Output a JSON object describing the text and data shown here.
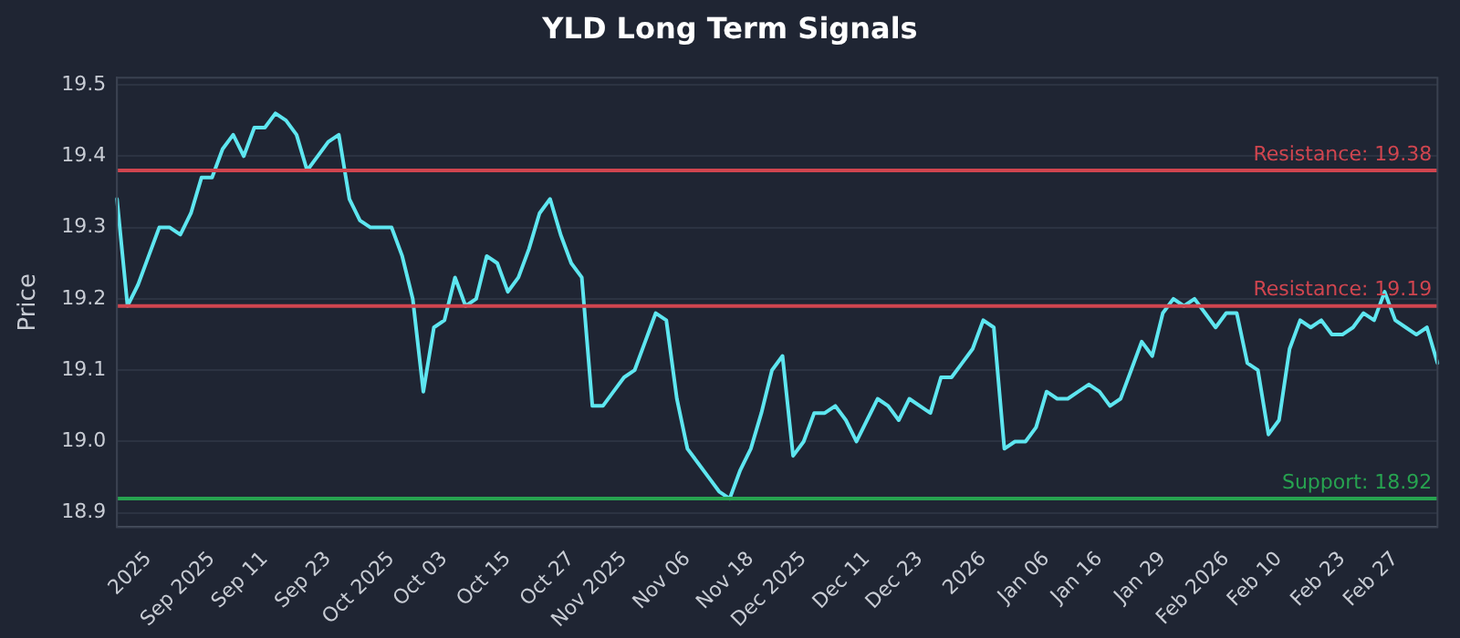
{
  "chart_data": {
    "type": "line",
    "title": "YLD Long Term Signals",
    "ylabel": "Price",
    "categories": [
      null,
      null,
      null,
      "2025",
      null,
      null,
      null,
      null,
      null,
      "Sep 2025",
      null,
      null,
      null,
      null,
      "Sep 11",
      null,
      null,
      null,
      null,
      null,
      "Sep 23",
      null,
      null,
      null,
      null,
      null,
      "Oct 2025",
      null,
      null,
      null,
      null,
      "Oct 03",
      null,
      null,
      null,
      null,
      null,
      "Oct 15",
      null,
      null,
      null,
      null,
      null,
      "Oct 27",
      null,
      null,
      null,
      null,
      "Nov 2025",
      null,
      null,
      null,
      null,
      null,
      "Nov 06",
      null,
      null,
      null,
      null,
      null,
      "Nov 18",
      null,
      null,
      null,
      null,
      "Dec 2025",
      null,
      null,
      null,
      null,
      null,
      "Dec 11",
      null,
      null,
      null,
      null,
      "Dec 23",
      null,
      null,
      null,
      null,
      null,
      "2026",
      null,
      null,
      null,
      null,
      null,
      "Jan 06",
      null,
      null,
      null,
      null,
      "Jan 16",
      null,
      null,
      null,
      null,
      null,
      "Jan 29",
      null,
      null,
      null,
      null,
      null,
      "Feb 2026",
      null,
      null,
      null,
      null,
      "Feb 10",
      null,
      null,
      null,
      null,
      null,
      "Feb 23",
      null,
      null,
      null,
      null,
      "Feb 27",
      null,
      null,
      null,
      null
    ],
    "series": [
      {
        "color": "#5ee6f0",
        "values": [
          19.34,
          19.19,
          19.22,
          19.26,
          19.3,
          19.3,
          19.29,
          19.32,
          19.37,
          19.37,
          19.41,
          19.43,
          19.4,
          19.44,
          19.44,
          19.46,
          19.45,
          19.43,
          19.38,
          19.4,
          19.42,
          19.43,
          19.34,
          19.31,
          19.3,
          19.3,
          19.3,
          19.26,
          19.2,
          19.07,
          19.16,
          19.17,
          19.23,
          19.19,
          19.2,
          19.26,
          19.25,
          19.21,
          19.23,
          19.27,
          19.32,
          19.34,
          19.29,
          19.25,
          19.23,
          19.05,
          19.05,
          19.07,
          19.09,
          19.1,
          19.14,
          19.18,
          19.17,
          19.06,
          18.99,
          18.97,
          18.95,
          18.93,
          18.92,
          18.96,
          18.99,
          19.04,
          19.1,
          19.12,
          18.98,
          19.0,
          19.04,
          19.04,
          19.05,
          19.03,
          19.0,
          19.03,
          19.06,
          19.05,
          19.03,
          19.06,
          19.05,
          19.04,
          19.09,
          19.09,
          19.11,
          19.13,
          19.17,
          19.16,
          18.99,
          19.0,
          19.0,
          19.02,
          19.07,
          19.06,
          19.06,
          19.07,
          19.08,
          19.07,
          19.05,
          19.06,
          19.1,
          19.14,
          19.12,
          19.18,
          19.2,
          19.19,
          19.2,
          19.18,
          19.16,
          19.18,
          19.18,
          19.11,
          19.1,
          19.01,
          19.03,
          19.13,
          19.17,
          19.16,
          19.17,
          19.15,
          19.15,
          19.16,
          19.18,
          19.17,
          19.21,
          19.17,
          19.16,
          19.15,
          19.16,
          19.11
        ]
      }
    ],
    "ylim": [
      18.88,
      19.51
    ],
    "yticks": [
      18.9,
      {
        "value": 19,
        "label": "19.0"
      },
      19.1,
      19.2,
      19.3,
      19.4,
      19.5
    ],
    "ref_lines": [
      {
        "axis": "y",
        "value": 19.38,
        "label": "Resistance: 19.38",
        "color": "#d0454f"
      },
      {
        "axis": "y",
        "value": 19.19,
        "label": "Resistance: 19.19",
        "color": "#d0454f"
      },
      {
        "axis": "y",
        "value": 18.92,
        "label": "Support: 18.92",
        "color": "#27a350"
      }
    ],
    "grid": "y",
    "legend": false,
    "marker": "none",
    "line_style": "solid"
  }
}
